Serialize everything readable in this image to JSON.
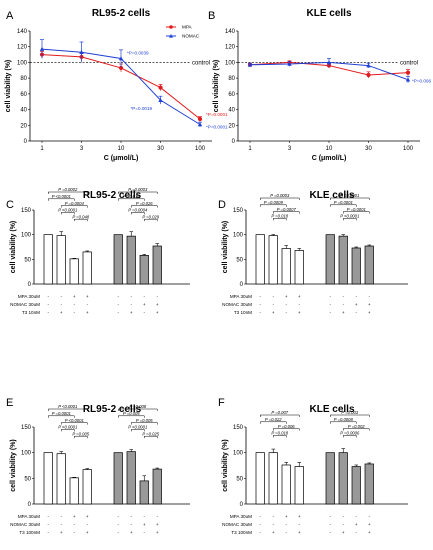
{
  "line_panels": [
    {
      "id": "A",
      "letter": "A",
      "title": "RL95-2 cells",
      "ylabel": "cell viability (%)",
      "xlabel": "C (μmol/L)",
      "control_label": "control",
      "yticks": [
        "0",
        "20",
        "40",
        "60",
        "80",
        "100",
        "120",
        "140"
      ],
      "xticks": [
        "1",
        "3",
        "10",
        "30",
        "100"
      ],
      "legend": [
        {
          "name": "MPA",
          "color": "#e31a1c"
        },
        {
          "name": "NOMAC",
          "color": "#1f3fd6"
        }
      ],
      "annotations": [
        "*P=0.0039",
        "*P=0.0019",
        "*P=0.0001",
        "*P=0.0001"
      ],
      "annotation_anchor": [
        [
          2,
          1
        ],
        [
          3,
          1
        ],
        [
          4,
          0
        ],
        [
          4,
          1
        ]
      ]
    },
    {
      "id": "B",
      "letter": "B",
      "title": "KLE cells",
      "ylabel": "cell viability (%)",
      "xlabel": "C (μmol/L)",
      "control_label": "control",
      "yticks": [
        "0",
        "20",
        "40",
        "60",
        "80",
        "100",
        "120",
        "140"
      ],
      "xticks": [
        "1",
        "3",
        "10",
        "30",
        "100"
      ],
      "annotations": [
        "*P=0.006"
      ],
      "annotation_anchor": [
        [
          4,
          1
        ]
      ]
    }
  ],
  "bar_panels": [
    {
      "id": "C",
      "letter": "C",
      "title": "RL95-2 cells",
      "ylabel": "cell viability (%)",
      "yticks": [
        "0",
        "50",
        "100",
        "150"
      ],
      "row_labels": [
        "MPA 30uM",
        "NOMAC 30uM",
        "T3 10nM"
      ],
      "table_group1": [
        [
          "-",
          "-",
          "+",
          "+"
        ],
        [
          "-",
          "-",
          "-",
          "-"
        ],
        [
          "-",
          "+",
          "-",
          "+"
        ]
      ],
      "table_group2": [
        [
          "-",
          "-",
          "-",
          "-"
        ],
        [
          "-",
          "-",
          "+",
          "+"
        ],
        [
          "-",
          "+",
          "-",
          "+"
        ]
      ],
      "brackets_g1": [
        "P =0.0002",
        "P <0.0001",
        "P =0.0004",
        "P <0.0001",
        "P =0.048"
      ],
      "brackets_g2": [
        "P =0.0003",
        "P =0.015",
        "P =0.026",
        "P =0.0004",
        "P =0.029"
      ]
    },
    {
      "id": "D",
      "letter": "D",
      "title": "KLE cells",
      "ylabel": "cell viability (%)",
      "yticks": [
        "0",
        "50",
        "100",
        "150"
      ],
      "row_labels": [
        "MPA 30uM",
        "NOMAC 30uM",
        "T3 10nM"
      ],
      "table_group1": [
        [
          "-",
          "-",
          "+",
          "+"
        ],
        [
          "-",
          "-",
          "-",
          "-"
        ],
        [
          "-",
          "+",
          "-",
          "+"
        ]
      ],
      "table_group2": [
        [
          "-",
          "-",
          "-",
          "-"
        ],
        [
          "-",
          "-",
          "+",
          "+"
        ],
        [
          "-",
          "+",
          "-",
          "+"
        ]
      ],
      "brackets_g1": [
        "P =0.0003",
        "P =0.0009",
        "P =0.0007",
        "P =0.018"
      ],
      "brackets_g2": [
        "P <0.0001",
        "P =0.0001",
        "P =0.0001",
        "P <0.0001"
      ]
    },
    {
      "id": "E",
      "letter": "E",
      "title": "RL95-2 cells",
      "ylabel": "cell viability (%)",
      "yticks": [
        "0",
        "50",
        "100",
        "150"
      ],
      "row_labels": [
        "MPA 30uM",
        "NOMAC 30uM",
        "T3 100nM"
      ],
      "table_group1": [
        [
          "-",
          "-",
          "+",
          "+"
        ],
        [
          "-",
          "-",
          "-",
          "-"
        ],
        [
          "-",
          "+",
          "-",
          "+"
        ]
      ],
      "table_group2": [
        [
          "-",
          "-",
          "-",
          "-"
        ],
        [
          "-",
          "-",
          "+",
          "+"
        ],
        [
          "-",
          "+",
          "-",
          "+"
        ]
      ],
      "brackets_g1": [
        "P <0.0001",
        "P =0.0001",
        "P <0.0001",
        "P <0.0001",
        "P =0.005"
      ],
      "brackets_g2": [
        "P =0.008",
        "P =0.005",
        "P =0.005",
        "P <0.0001",
        "P =0.025"
      ]
    },
    {
      "id": "F",
      "letter": "F",
      "title": "KLE cells",
      "ylabel": "cell viability (%)",
      "yticks": [
        "0",
        "50",
        "100",
        "150"
      ],
      "row_labels": [
        "MPA 30uM",
        "NOMAC 30uM",
        "T3 100nM"
      ],
      "table_group1": [
        [
          "-",
          "-",
          "+",
          "+"
        ],
        [
          "-",
          "-",
          "-",
          "-"
        ],
        [
          "-",
          "+",
          "-",
          "+"
        ]
      ],
      "table_group2": [
        [
          "-",
          "-",
          "-",
          "-"
        ],
        [
          "-",
          "-",
          "+",
          "+"
        ],
        [
          "-",
          "+",
          "-",
          "+"
        ]
      ],
      "brackets_g1": [
        "P =0.007",
        "P =0.022",
        "P =0.006",
        "P =0.018"
      ],
      "brackets_g2": [
        "P =0.003",
        "P =0.0008",
        "P =0.002",
        "P =0.0006"
      ]
    }
  ],
  "chart_data": [
    {
      "type": "line",
      "panel": "A",
      "title": "RL95-2 cells",
      "xlabel": "C (μmol/L)",
      "ylabel": "cell viability (%)",
      "x": [
        "1",
        "3",
        "10",
        "30",
        "100"
      ],
      "ylim": [
        0,
        140
      ],
      "control_line": 100,
      "series": [
        {
          "name": "MPA",
          "color": "#e31a1c",
          "values": [
            110,
            107,
            93,
            68,
            28
          ],
          "err": [
            4,
            5,
            5,
            4,
            3
          ]
        },
        {
          "name": "NOMAC",
          "color": "#1f3fd6",
          "values": [
            117,
            113,
            105,
            52,
            21
          ],
          "err": [
            12,
            13,
            11,
            5,
            3
          ]
        }
      ]
    },
    {
      "type": "line",
      "panel": "B",
      "title": "KLE cells",
      "xlabel": "C (μmol/L)",
      "ylabel": "cell viability (%)",
      "x": [
        "1",
        "3",
        "10",
        "30",
        "100"
      ],
      "ylim": [
        0,
        140
      ],
      "control_line": 100,
      "series": [
        {
          "color": "#e31a1c",
          "values": [
            97,
            100,
            96,
            84,
            87
          ],
          "err": [
            2,
            2,
            3,
            4,
            4
          ]
        },
        {
          "color": "#1f3fd6",
          "values": [
            97,
            98,
            100,
            96,
            78
          ],
          "err": [
            2,
            3,
            5,
            3,
            4
          ]
        }
      ]
    },
    {
      "type": "bar",
      "panel": "C",
      "title": "RL95-2 cells",
      "ylabel": "cell viability (%)",
      "ylim": [
        0,
        150
      ],
      "series": [
        {
          "values": [
            100,
            98,
            51,
            65
          ],
          "err": [
            0,
            8,
            1,
            2
          ]
        },
        {
          "values": [
            100,
            97,
            58,
            77
          ],
          "err": [
            0,
            9,
            2,
            5
          ]
        }
      ]
    },
    {
      "type": "bar",
      "panel": "D",
      "title": "KLE cells",
      "ylabel": "cell viability (%)",
      "ylim": [
        0,
        150
      ],
      "series": [
        {
          "values": [
            100,
            98,
            72,
            68
          ],
          "err": [
            0,
            2,
            6,
            4
          ]
        },
        {
          "values": [
            100,
            97,
            73,
            77
          ],
          "err": [
            0,
            3,
            2,
            2
          ]
        }
      ]
    },
    {
      "type": "bar",
      "panel": "E",
      "title": "RL95-2 cells",
      "ylabel": "cell viability (%)",
      "ylim": [
        0,
        150
      ],
      "series": [
        {
          "values": [
            100,
            98,
            51,
            67
          ],
          "err": [
            0,
            4,
            1,
            2
          ]
        },
        {
          "values": [
            100,
            102,
            45,
            68
          ],
          "err": [
            0,
            4,
            10,
            2
          ]
        }
      ]
    },
    {
      "type": "bar",
      "panel": "F",
      "title": "KLE cells",
      "ylabel": "cell viability (%)",
      "ylim": [
        0,
        150
      ],
      "series": [
        {
          "values": [
            100,
            100,
            76,
            73
          ],
          "err": [
            0,
            7,
            5,
            8
          ]
        },
        {
          "values": [
            100,
            100,
            73,
            78
          ],
          "err": [
            0,
            8,
            3,
            2
          ]
        }
      ]
    }
  ]
}
